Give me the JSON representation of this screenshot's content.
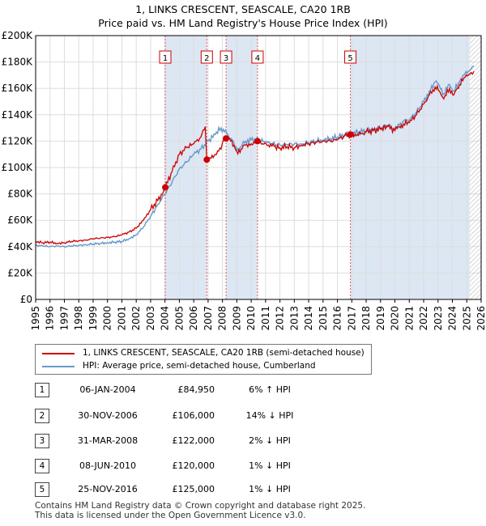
{
  "title": {
    "line1": "1, LINKS CRESCENT, SEASCALE, CA20 1RB",
    "line2": "Price paid vs. HM Land Registry's House Price Index (HPI)"
  },
  "colors": {
    "price_line": "#cc0000",
    "hpi_line": "#6699cc",
    "shade": "#dde6f3",
    "marker_line": "#e06060",
    "grid": "#dddddd",
    "hatch": "#aaaaaa"
  },
  "legend": {
    "price_label": "1, LINKS CRESCENT, SEASCALE, CA20 1RB (semi-detached house)",
    "hpi_label": "HPI: Average price, semi-detached house, Cumberland"
  },
  "transactions": [
    {
      "num": "1",
      "date": "06-JAN-2004",
      "price": "£84,950",
      "hpi": "6% ↑ HPI"
    },
    {
      "num": "2",
      "date": "30-NOV-2006",
      "price": "£106,000",
      "hpi": "14% ↓ HPI"
    },
    {
      "num": "3",
      "date": "31-MAR-2008",
      "price": "£122,000",
      "hpi": "2% ↓ HPI"
    },
    {
      "num": "4",
      "date": "08-JUN-2010",
      "price": "£120,000",
      "hpi": "1% ↓ HPI"
    },
    {
      "num": "5",
      "date": "25-NOV-2016",
      "price": "£125,000",
      "hpi": "1% ↓ HPI"
    }
  ],
  "footer": {
    "line1": "Contains HM Land Registry data © Crown copyright and database right 2025.",
    "line2": "This data is licensed under the Open Government Licence v3.0."
  },
  "chart_data": {
    "type": "line",
    "title": "Price paid vs. HM Land Registry's House Price Index (HPI)",
    "xlim": [
      1995,
      2026
    ],
    "ylim": [
      0,
      200000
    ],
    "x_ticks": [
      "1995",
      "1996",
      "1997",
      "1998",
      "1999",
      "2000",
      "2001",
      "2002",
      "2003",
      "2004",
      "2005",
      "2006",
      "2007",
      "2008",
      "2009",
      "2010",
      "2011",
      "2012",
      "2013",
      "2014",
      "2015",
      "2016",
      "2017",
      "2018",
      "2019",
      "2020",
      "2021",
      "2022",
      "2023",
      "2024",
      "2025",
      "2026"
    ],
    "y_ticks": [
      {
        "value": 0,
        "label": "£0"
      },
      {
        "value": 20000,
        "label": "£20K"
      },
      {
        "value": 40000,
        "label": "£40K"
      },
      {
        "value": 60000,
        "label": "£60K"
      },
      {
        "value": 80000,
        "label": "£80K"
      },
      {
        "value": 100000,
        "label": "£100K"
      },
      {
        "value": 120000,
        "label": "£120K"
      },
      {
        "value": 140000,
        "label": "£140K"
      },
      {
        "value": 160000,
        "label": "£160K"
      },
      {
        "value": 180000,
        "label": "£180K"
      },
      {
        "value": 200000,
        "label": "£200K"
      }
    ],
    "forecast_start": 2025.2,
    "series": [
      {
        "name": "1, LINKS CRESCENT, SEASCALE, CA20 1RB (semi-detached house)",
        "x": [
          1995.0,
          1995.5,
          1996.0,
          1996.5,
          1997.0,
          1997.5,
          1998.0,
          1998.5,
          1999.0,
          1999.5,
          2000.0,
          2000.5,
          2001.0,
          2001.5,
          2002.0,
          2002.5,
          2003.0,
          2003.5,
          2003.9,
          2004.02,
          2004.5,
          2005.0,
          2005.5,
          2006.0,
          2006.5,
          2006.8,
          2006.91,
          2007.2,
          2007.5,
          2007.9,
          2008.1,
          2008.25,
          2008.5,
          2008.8,
          2009.0,
          2009.3,
          2009.6,
          2010.0,
          2010.44,
          2010.8,
          2011.2,
          2011.6,
          2012.0,
          2012.5,
          2013.0,
          2013.5,
          2014.0,
          2014.5,
          2015.0,
          2015.5,
          2016.0,
          2016.5,
          2016.9,
          2017.3,
          2017.7,
          2018.0,
          2018.5,
          2019.0,
          2019.5,
          2020.0,
          2020.3,
          2020.6,
          2021.0,
          2021.5,
          2022.0,
          2022.4,
          2022.8,
          2023.1,
          2023.4,
          2023.8,
          2024.1,
          2024.5,
          2024.8,
          2025.1,
          2025.3,
          2025.5
        ],
        "y": [
          44000,
          43000,
          43500,
          42500,
          43000,
          44000,
          44500,
          45000,
          46000,
          46500,
          47000,
          47500,
          49000,
          51000,
          54000,
          60000,
          68000,
          75000,
          82000,
          84950,
          97000,
          110000,
          115000,
          118000,
          123000,
          131000,
          106000,
          107000,
          110000,
          114000,
          122000,
          124000,
          122000,
          117000,
          112000,
          114000,
          117000,
          118000,
          120000,
          118000,
          117000,
          116000,
          115000,
          116000,
          115000,
          117000,
          118000,
          119000,
          120000,
          120000,
          121000,
          124000,
          125000,
          124000,
          126000,
          127000,
          128000,
          129000,
          131000,
          128000,
          131000,
          133000,
          134000,
          140000,
          148000,
          155000,
          161000,
          158000,
          152000,
          160000,
          155000,
          163000,
          168000,
          170000,
          172000,
          173000
        ]
      },
      {
        "name": "HPI: Average price, semi-detached house, Cumberland",
        "x": [
          1995.0,
          1995.5,
          1996.0,
          1996.5,
          1997.0,
          1997.5,
          1998.0,
          1998.5,
          1999.0,
          1999.5,
          2000.0,
          2000.5,
          2001.0,
          2001.5,
          2002.0,
          2002.5,
          2003.0,
          2003.5,
          2004.0,
          2004.5,
          2005.0,
          2005.5,
          2006.0,
          2006.5,
          2007.0,
          2007.5,
          2007.9,
          2008.3,
          2008.7,
          2009.0,
          2009.3,
          2009.6,
          2010.0,
          2010.5,
          2011.0,
          2011.5,
          2012.0,
          2012.5,
          2013.0,
          2013.5,
          2014.0,
          2014.5,
          2015.0,
          2015.5,
          2016.0,
          2016.5,
          2017.0,
          2017.5,
          2018.0,
          2018.5,
          2019.0,
          2019.5,
          2020.0,
          2020.3,
          2020.6,
          2021.0,
          2021.5,
          2022.0,
          2022.4,
          2022.8,
          2023.1,
          2023.4,
          2023.8,
          2024.1,
          2024.5,
          2024.8,
          2025.1,
          2025.3,
          2025.5
        ],
        "y": [
          41000,
          40500,
          40000,
          40500,
          40000,
          40500,
          41000,
          41500,
          42000,
          42500,
          43000,
          43500,
          44000,
          46000,
          49000,
          55000,
          63000,
          72000,
          80000,
          89000,
          99000,
          104000,
          110000,
          114000,
          120000,
          125000,
          130000,
          126000,
          120000,
          113000,
          116000,
          120000,
          121000,
          121000,
          119000,
          118000,
          117000,
          117500,
          118000,
          118000,
          119000,
          120000,
          121000,
          122000,
          123000,
          125000,
          126000,
          127000,
          128000,
          129000,
          130000,
          132000,
          129000,
          132000,
          135000,
          136000,
          142000,
          150000,
          158000,
          165000,
          162000,
          156000,
          163000,
          158000,
          165000,
          170000,
          173000,
          175000,
          177000
        ]
      }
    ],
    "sales": [
      {
        "label": "1",
        "x": 2004.02,
        "y": 84950
      },
      {
        "label": "2",
        "x": 2006.91,
        "y": 106000
      },
      {
        "label": "3",
        "x": 2008.25,
        "y": 122000
      },
      {
        "label": "4",
        "x": 2010.44,
        "y": 120000
      },
      {
        "label": "5",
        "x": 2016.9,
        "y": 125000
      }
    ],
    "shaded_periods": [
      [
        2004.02,
        2006.91
      ],
      [
        2008.25,
        2010.44
      ],
      [
        2016.9,
        2025.2
      ]
    ]
  }
}
